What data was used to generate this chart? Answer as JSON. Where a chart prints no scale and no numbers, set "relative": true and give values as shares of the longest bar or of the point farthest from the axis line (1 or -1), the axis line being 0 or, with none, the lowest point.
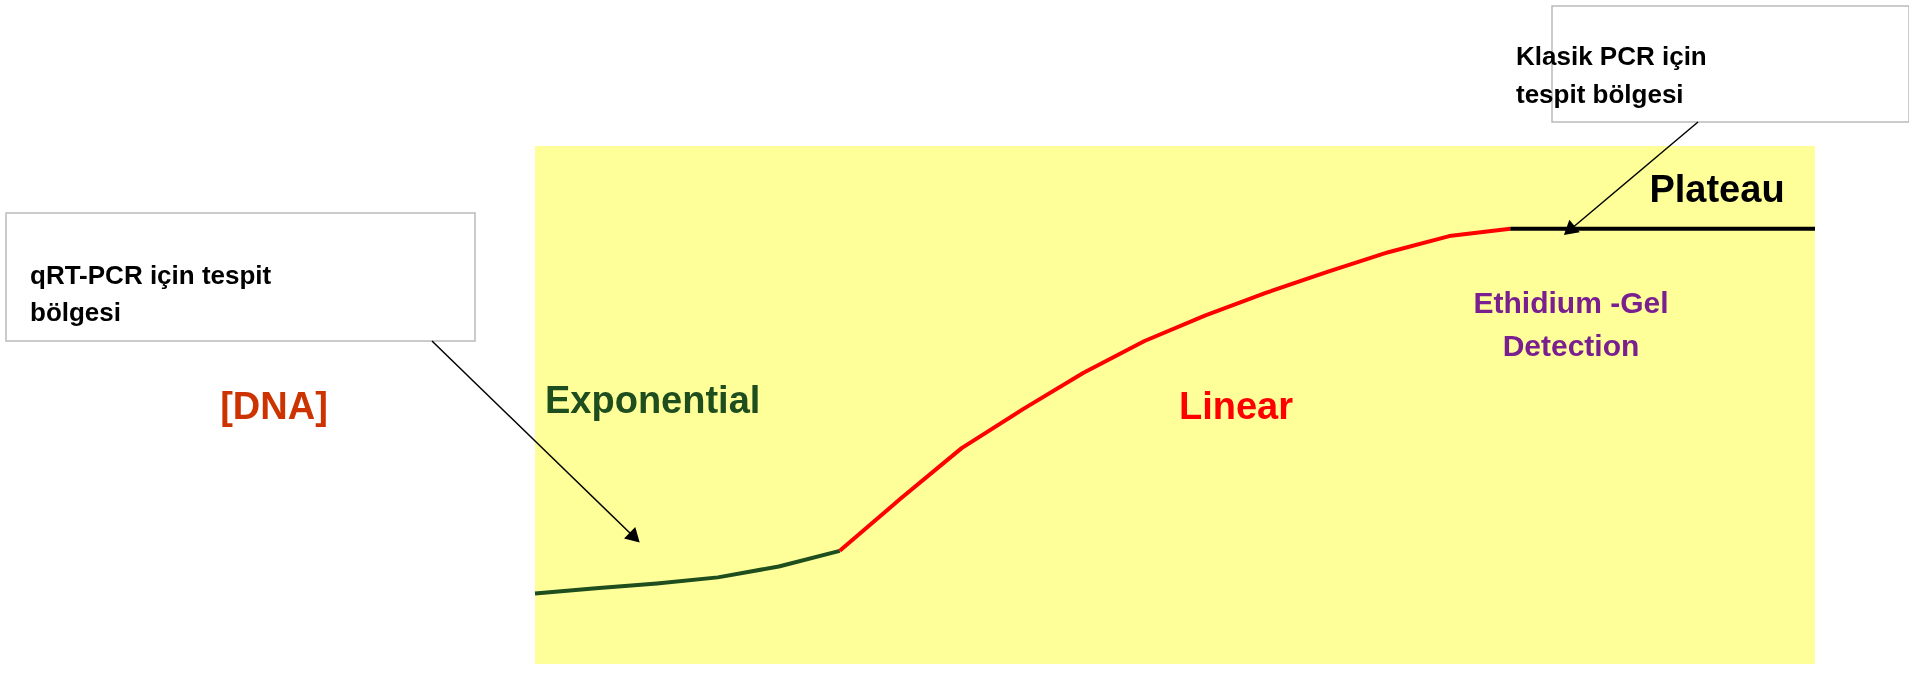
{
  "chart_data": {
    "type": "line",
    "relative": true,
    "categories": [
      null,
      null,
      null,
      null,
      null,
      null,
      null,
      null,
      null,
      null,
      null,
      null,
      null,
      null,
      null,
      null,
      null,
      null,
      null,
      null,
      null,
      null
    ],
    "series": [
      {
        "name": "Exponential",
        "color": "#1e4d1e",
        "values": [
          0.162,
          0.174,
          0.185,
          0.199,
          0.224,
          0.26,
          null,
          null,
          null,
          null,
          null,
          null,
          null,
          null,
          null,
          null,
          null,
          null,
          null,
          null,
          null,
          null
        ]
      },
      {
        "name": "Linear",
        "color": "#ff0000",
        "values": [
          null,
          null,
          null,
          null,
          null,
          0.26,
          0.38,
          0.496,
          0.585,
          0.669,
          0.742,
          0.801,
          0.853,
          0.901,
          0.946,
          0.983,
          1,
          null,
          null,
          null,
          null,
          null
        ]
      },
      {
        "name": "Plateau",
        "color": "#000000",
        "values": [
          null,
          null,
          null,
          null,
          null,
          null,
          null,
          null,
          null,
          null,
          null,
          null,
          null,
          null,
          null,
          null,
          1,
          1,
          1,
          1,
          1,
          1
        ]
      }
    ],
    "annotations": [
      "qRT-PCR için tespit bölgesi",
      "Klasik PCR için tespit bölgesi",
      "Ethidium -Gel Detection",
      "[DNA]"
    ],
    "grid": false,
    "marker": "none",
    "line_style": "solid",
    "tick_labels": false
  }
}
